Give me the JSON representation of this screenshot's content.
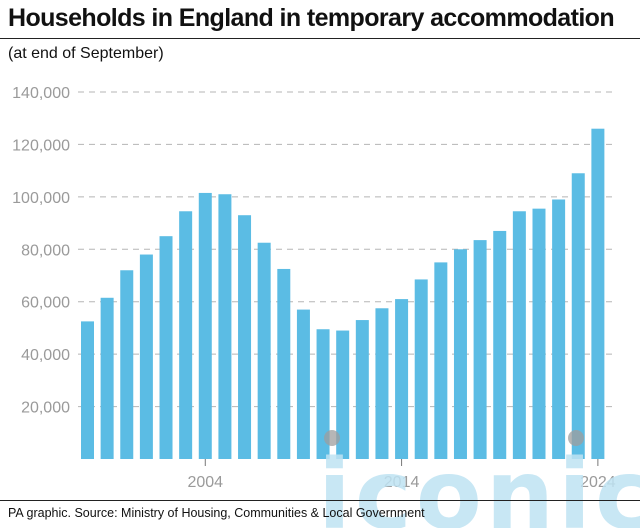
{
  "header": {
    "title": "Households in England in temporary accommodation",
    "subtitle": "(at end of September)"
  },
  "footer": {
    "source": "PA graphic. Source: Ministry of Housing, Communities & Local Government"
  },
  "colors": {
    "bar": "#5bbce4",
    "gridline": "#b5b5b5",
    "tick_text": "#9a9a9a",
    "watermark": "#bfe3f3"
  },
  "watermark": {
    "text": "iconic"
  },
  "chart_data": {
    "type": "bar",
    "title": "Households in England in temporary accommodation",
    "subtitle": "(at end of September)",
    "xlabel": "",
    "ylabel": "",
    "x": [
      1998,
      1999,
      2000,
      2001,
      2002,
      2003,
      2004,
      2005,
      2006,
      2007,
      2008,
      2009,
      2010,
      2011,
      2012,
      2013,
      2014,
      2015,
      2016,
      2017,
      2018,
      2019,
      2020,
      2021,
      2022,
      2023,
      2024
    ],
    "values": [
      52500,
      61500,
      72000,
      78000,
      85000,
      94500,
      101500,
      101000,
      93000,
      82500,
      72500,
      57000,
      49500,
      49000,
      53000,
      57500,
      61000,
      68500,
      75000,
      80000,
      83500,
      87000,
      94500,
      95500,
      99000,
      109000,
      126000
    ],
    "x_tick_labels": [
      "2004",
      "2014",
      "2024"
    ],
    "y_ticks": [
      20000,
      40000,
      60000,
      80000,
      100000,
      120000,
      140000
    ],
    "y_tick_labels": [
      "20,000",
      "40,000",
      "60,000",
      "80,000",
      "100,000",
      "120,000",
      "140,000"
    ],
    "ylim": [
      0,
      140000
    ],
    "grid": true,
    "legend": "none"
  }
}
